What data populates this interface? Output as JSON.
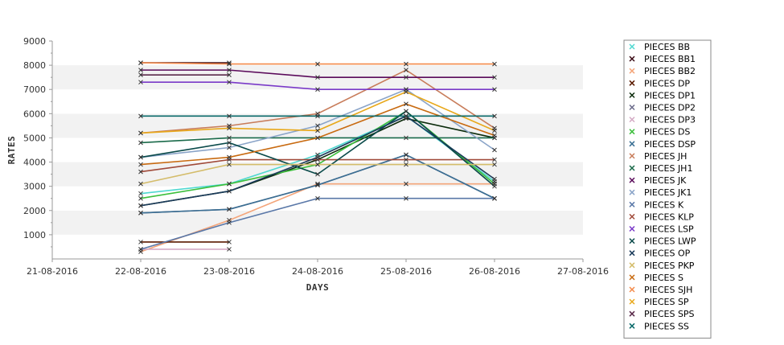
{
  "chart_data": {
    "type": "line",
    "xlabel": "DAYS",
    "ylabel": "RATES",
    "x_ticks": [
      "21-08-2016",
      "22-08-2016",
      "23-08-2016",
      "24-08-2016",
      "25-08-2016",
      "26-08-2016",
      "27-08-2016"
    ],
    "y_ticks": [
      1000,
      2000,
      3000,
      4000,
      5000,
      6000,
      7000,
      8000,
      9000
    ],
    "ylim": [
      0,
      9000
    ],
    "legend_position": "right",
    "grid": "alternating horizontal bands",
    "x": [
      "22-08-2016",
      "23-08-2016",
      "24-08-2016",
      "25-08-2016",
      "26-08-2016"
    ],
    "series": [
      {
        "name": "PIECES BB",
        "color": "#4fd8d0",
        "values": [
          2700,
          3100,
          4300,
          5900,
          3200
        ]
      },
      {
        "name": "PIECES BB1",
        "color": "#3a0a14",
        "values": [
          8100,
          8100,
          null,
          null,
          null
        ]
      },
      {
        "name": "PIECES BB2",
        "color": "#f4a57a",
        "values": [
          300,
          1600,
          3100,
          3100,
          3100
        ]
      },
      {
        "name": "PIECES DP",
        "color": "#5a1a00",
        "values": [
          700,
          700,
          null,
          null,
          null
        ]
      },
      {
        "name": "PIECES DP1",
        "color": "#0b2b0b",
        "values": [
          2200,
          2800,
          4100,
          5800,
          5000
        ]
      },
      {
        "name": "PIECES DP2",
        "color": "#6a6a8a",
        "values": [
          1900,
          2050,
          3050,
          4300,
          2500
        ]
      },
      {
        "name": "PIECES DP3",
        "color": "#d4a9c4",
        "values": [
          400,
          400,
          null,
          null,
          null
        ]
      },
      {
        "name": "PIECES DS",
        "color": "#3cbf3c",
        "values": [
          2500,
          3100,
          3900,
          6100,
          3100
        ]
      },
      {
        "name": "PIECES DSP",
        "color": "#3a6f94",
        "values": [
          1900,
          2050,
          3050,
          4300,
          2500
        ]
      },
      {
        "name": "PIECES JH",
        "color": "#c87c5a",
        "values": [
          5200,
          5500,
          6000,
          7800,
          5400
        ]
      },
      {
        "name": "PIECES JH1",
        "color": "#1a6a4a",
        "values": [
          4800,
          5000,
          5000,
          5000,
          5000
        ]
      },
      {
        "name": "PIECES JK",
        "color": "#5a0a5a",
        "values": [
          7800,
          7800,
          7500,
          7500,
          7500
        ]
      },
      {
        "name": "PIECES JK1",
        "color": "#8aa4c8",
        "values": [
          4200,
          4600,
          5500,
          7000,
          4500
        ]
      },
      {
        "name": "PIECES K",
        "color": "#5a78a8",
        "values": [
          400,
          1500,
          2500,
          2500,
          2500
        ]
      },
      {
        "name": "PIECES KLP",
        "color": "#a04a3a",
        "values": [
          3600,
          4100,
          4100,
          4100,
          4100
        ]
      },
      {
        "name": "PIECES LSP",
        "color": "#7a3ac8",
        "values": [
          7300,
          7300,
          7000,
          7000,
          7000
        ]
      },
      {
        "name": "PIECES LWP",
        "color": "#0a4a4a",
        "values": [
          4200,
          4800,
          3500,
          6100,
          3000
        ]
      },
      {
        "name": "PIECES OP",
        "color": "#1a3a5a",
        "values": [
          2200,
          2800,
          4200,
          5900,
          3300
        ]
      },
      {
        "name": "PIECES PKP",
        "color": "#d4bc6a",
        "values": [
          3100,
          3900,
          3900,
          3900,
          3900
        ]
      },
      {
        "name": "PIECES S",
        "color": "#c86a10",
        "values": [
          3900,
          4200,
          5000,
          6400,
          5100
        ]
      },
      {
        "name": "PIECES SJH",
        "color": "#f48a4a",
        "values": [
          8100,
          8050,
          8050,
          8050,
          8050
        ]
      },
      {
        "name": "PIECES SP",
        "color": "#e8a81a",
        "values": [
          5200,
          5400,
          5300,
          6900,
          5300
        ]
      },
      {
        "name": "PIECES SPS",
        "color": "#5a2a4a",
        "values": [
          7600,
          7600,
          null,
          null,
          null
        ]
      },
      {
        "name": "PIECES SS",
        "color": "#0a6a6a",
        "values": [
          5900,
          5900,
          5900,
          5900,
          5900
        ]
      }
    ]
  }
}
